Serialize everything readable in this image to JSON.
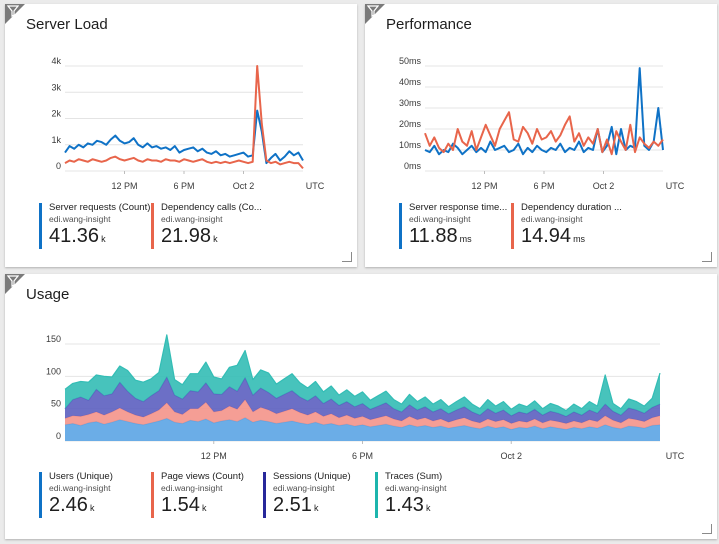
{
  "colors": {
    "blue": "#0f72c6",
    "orange": "#e8654b",
    "pink": "#f4938a",
    "navy": "#27289a",
    "teal": "#1db5ad",
    "lightblue": "#5ba4e4"
  },
  "tiles": {
    "server_load": {
      "title": "Server Load",
      "legend": [
        {
          "name": "Server requests (Count)",
          "source": "edi.wang-insight",
          "value": "41.36",
          "unit": "k",
          "color": "#0f72c6"
        },
        {
          "name": "Dependency calls (Co...",
          "source": "edi.wang-insight",
          "value": "21.98",
          "unit": "k",
          "color": "#e8654b"
        }
      ]
    },
    "performance": {
      "title": "Performance",
      "legend": [
        {
          "name": "Server response time...",
          "source": "edi.wang-insight",
          "value": "11.88",
          "unit": "ms",
          "color": "#0f72c6"
        },
        {
          "name": "Dependency duration ...",
          "source": "edi.wang-insight",
          "value": "14.94",
          "unit": "ms",
          "color": "#e8654b"
        }
      ]
    },
    "usage": {
      "title": "Usage",
      "legend": [
        {
          "name": "Users (Unique)",
          "source": "edi.wang-insight",
          "value": "2.46",
          "unit": "k",
          "color": "#0f72c6"
        },
        {
          "name": "Page views (Count)",
          "source": "edi.wang-insight",
          "value": "1.54",
          "unit": "k",
          "color": "#e8654b"
        },
        {
          "name": "Sessions (Unique)",
          "source": "edi.wang-insight",
          "value": "2.51",
          "unit": "k",
          "color": "#27289a"
        },
        {
          "name": "Traces (Sum)",
          "source": "edi.wang-insight",
          "value": "1.43",
          "unit": "k",
          "color": "#1db5ad"
        }
      ]
    }
  },
  "chart_data": [
    {
      "id": "server_load",
      "type": "line",
      "yticks": [
        "0",
        "1k",
        "2k",
        "3k",
        "4k"
      ],
      "ylim": [
        0,
        4000
      ],
      "xticks": [
        "12 PM",
        "6 PM",
        "Oct 2"
      ],
      "xunit": "UTC",
      "series": [
        {
          "name": "Server requests (Count)",
          "color": "#0f72c6",
          "values": [
            700,
            950,
            850,
            1000,
            900,
            1050,
            1000,
            1150,
            1100,
            1000,
            1200,
            1350,
            1150,
            1050,
            1100,
            1250,
            1000,
            900,
            1050,
            900,
            950,
            850,
            900,
            800,
            950,
            700,
            800,
            850,
            900,
            750,
            850,
            700,
            650,
            750,
            600,
            650,
            550,
            600,
            650,
            700,
            550,
            600,
            2300,
            1500,
            300,
            500,
            650,
            400,
            550,
            750,
            600,
            700,
            400
          ]
        },
        {
          "name": "Dependency calls (Co...",
          "color": "#e8654b",
          "values": [
            300,
            400,
            350,
            450,
            400,
            350,
            450,
            400,
            350,
            400,
            500,
            550,
            450,
            400,
            450,
            500,
            400,
            350,
            450,
            400,
            400,
            350,
            450,
            400,
            400,
            350,
            450,
            400,
            350,
            400,
            450,
            350,
            300,
            350,
            300,
            350,
            300,
            350,
            400,
            350,
            300,
            350,
            4000,
            1800,
            400,
            300,
            350,
            250,
            300,
            350,
            300,
            300,
            100
          ]
        }
      ]
    },
    {
      "id": "performance",
      "type": "line",
      "yticks": [
        "0ms",
        "10ms",
        "20ms",
        "30ms",
        "40ms",
        "50ms"
      ],
      "ylim": [
        0,
        50
      ],
      "xticks": [
        "12 PM",
        "6 PM",
        "Oct 2"
      ],
      "xunit": "UTC",
      "series": [
        {
          "name": "Server response time...",
          "color": "#0f72c6",
          "values": [
            10,
            9,
            12,
            8,
            10,
            9,
            13,
            11,
            8,
            10,
            12,
            9,
            11,
            9,
            14,
            10,
            11,
            12,
            9,
            10,
            13,
            8,
            11,
            9,
            12,
            10,
            9,
            11,
            10,
            13,
            9,
            11,
            10,
            14,
            9,
            11,
            10,
            20,
            9,
            12,
            21,
            8,
            20,
            10,
            12,
            11,
            49,
            12,
            10,
            14,
            30,
            10
          ]
        },
        {
          "name": "Dependency duration ...",
          "color": "#e8654b",
          "values": [
            18,
            12,
            16,
            11,
            9,
            13,
            10,
            20,
            14,
            12,
            19,
            10,
            16,
            22,
            17,
            12,
            20,
            24,
            28,
            15,
            14,
            21,
            18,
            13,
            20,
            15,
            16,
            19,
            14,
            17,
            22,
            26,
            14,
            18,
            12,
            16,
            13,
            20,
            9,
            15,
            8,
            19,
            14,
            10,
            22,
            9,
            16,
            13,
            11,
            14,
            12,
            15
          ]
        }
      ]
    },
    {
      "id": "usage",
      "type": "area",
      "stacked": true,
      "yticks": [
        "0",
        "50",
        "100",
        "150"
      ],
      "ylim": [
        0,
        150
      ],
      "xticks": [
        "12 PM",
        "6 PM",
        "Oct 2"
      ],
      "xunit": "UTC",
      "series": [
        {
          "name": "Users (Unique)",
          "color": "#5ba4e4",
          "values": [
            25,
            27,
            24,
            28,
            30,
            26,
            29,
            33,
            30,
            27,
            25,
            28,
            31,
            35,
            29,
            27,
            32,
            30,
            34,
            28,
            31,
            33,
            30,
            36,
            29,
            32,
            30,
            27,
            29,
            31,
            28,
            26,
            29,
            25,
            27,
            24,
            26,
            23,
            25,
            22,
            24,
            26,
            23,
            21,
            25,
            22,
            24,
            21,
            23,
            20,
            22,
            24,
            21,
            19,
            23,
            20,
            22,
            18,
            21,
            20,
            23,
            19,
            22,
            20,
            18,
            21,
            19,
            22,
            20,
            25,
            21,
            19,
            23,
            22,
            20,
            24,
            25
          ]
        },
        {
          "name": "Page views (Count)",
          "color": "#f4938a",
          "values": [
            10,
            12,
            14,
            13,
            15,
            14,
            16,
            18,
            15,
            13,
            12,
            14,
            17,
            24,
            16,
            14,
            18,
            20,
            26,
            17,
            16,
            21,
            19,
            28,
            16,
            20,
            18,
            15,
            17,
            19,
            16,
            14,
            16,
            13,
            15,
            12,
            14,
            12,
            13,
            11,
            12,
            13,
            11,
            10,
            13,
            11,
            12,
            10,
            11,
            9,
            11,
            12,
            10,
            9,
            11,
            10,
            11,
            9,
            10,
            9,
            11,
            9,
            10,
            10,
            9,
            10,
            9,
            11,
            10,
            14,
            11,
            9,
            12,
            11,
            10,
            12,
            14
          ]
        },
        {
          "name": "Sessions (Unique)",
          "color": "#5c5fc0",
          "values": [
            15,
            25,
            30,
            22,
            35,
            30,
            28,
            40,
            32,
            26,
            24,
            28,
            30,
            40,
            26,
            24,
            28,
            26,
            30,
            28,
            25,
            30,
            28,
            34,
            26,
            30,
            27,
            24,
            26,
            28,
            24,
            22,
            25,
            20,
            23,
            19,
            21,
            18,
            20,
            16,
            18,
            20,
            16,
            14,
            18,
            15,
            17,
            14,
            16,
            13,
            15,
            17,
            14,
            12,
            16,
            13,
            15,
            12,
            14,
            13,
            15,
            12,
            14,
            13,
            11,
            14,
            12,
            15,
            13,
            18,
            14,
            12,
            16,
            15,
            13,
            16,
            18
          ]
        },
        {
          "name": "Traces (Sum)",
          "color": "#33bdb5",
          "values": [
            30,
            25,
            24,
            28,
            22,
            30,
            26,
            25,
            32,
            28,
            30,
            26,
            28,
            65,
            24,
            22,
            26,
            28,
            32,
            26,
            24,
            30,
            40,
            42,
            24,
            28,
            30,
            22,
            24,
            26,
            22,
            20,
            22,
            18,
            20,
            16,
            18,
            16,
            18,
            14,
            16,
            18,
            14,
            12,
            16,
            13,
            15,
            12,
            14,
            11,
            13,
            15,
            12,
            10,
            14,
            11,
            13,
            10,
            12,
            11,
            13,
            10,
            12,
            11,
            9,
            12,
            10,
            13,
            11,
            45,
            12,
            10,
            14,
            13,
            11,
            14,
            48
          ]
        }
      ]
    }
  ]
}
